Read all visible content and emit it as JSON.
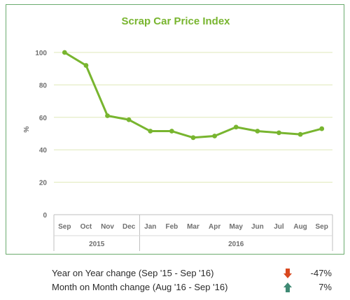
{
  "chart_data": {
    "type": "line",
    "title": "Scrap Car Price Index",
    "ylabel": "%",
    "xlabel": "",
    "ylim": [
      0,
      100
    ],
    "yticks": [
      0,
      20,
      40,
      60,
      80,
      100
    ],
    "categories": [
      "Sep",
      "Oct",
      "Nov",
      "Dec",
      "Jan",
      "Feb",
      "Mar",
      "Apr",
      "May",
      "Jun",
      "Jul",
      "Aug",
      "Sep"
    ],
    "year_groups": [
      {
        "label": "2015",
        "start": 0,
        "end": 3
      },
      {
        "label": "2016",
        "start": 4,
        "end": 12
      }
    ],
    "series": [
      {
        "values": [
          100,
          92,
          61,
          58.5,
          51.5,
          51.5,
          47.5,
          48.5,
          54,
          51.5,
          50.5,
          49.5,
          53
        ],
        "color": "#78b52f"
      }
    ],
    "grid": true,
    "legend": "none"
  },
  "summary": {
    "yoy_label": "Year on Year change (Sep '15 - Sep '16)",
    "yoy_value": "-47%",
    "yoy_direction": "down",
    "mom_label": "Month on Month change (Aug '16 - Sep '16)",
    "mom_value": "7%",
    "mom_direction": "up"
  },
  "colors": {
    "line": "#78b52f",
    "grid": "#dfe8b8",
    "frame": "#6bab6e",
    "down_arrow": "#d9481f",
    "up_arrow": "#3f8a74"
  }
}
